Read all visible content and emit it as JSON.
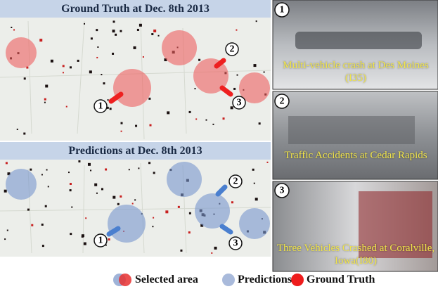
{
  "maps": [
    {
      "title": "Ground Truth at Dec. 8th 2013"
    },
    {
      "title": "Predictions at Dec. 8th 2013"
    }
  ],
  "markers": [
    "1",
    "2",
    "3"
  ],
  "photos": [
    {
      "number": "1",
      "caption": "Multi-vehicle crash at Des Moines (I35)"
    },
    {
      "number": "2",
      "caption": "Traffic Accidents at Cedar Rapids"
    },
    {
      "number": "3",
      "caption": "Three Vehicles Crashed at Coralville, Iowa(I80)"
    }
  ],
  "legend": [
    "Selected area",
    "Predictions",
    "Ground Truth"
  ]
}
